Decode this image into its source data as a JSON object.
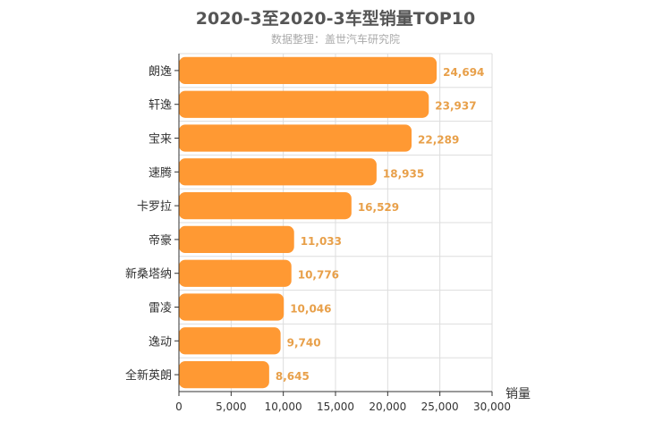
{
  "chart_data": {
    "type": "bar",
    "orientation": "horizontal",
    "title": "2020-3至2020-3车型销量TOP10",
    "subtitle": "数据整理：盖世汽车研究院",
    "categories": [
      "朗逸",
      "轩逸",
      "宝来",
      "速腾",
      "卡罗拉",
      "帝豪",
      "新桑塔纳",
      "雷凌",
      "逸动",
      "全新英朗"
    ],
    "values": [
      24694,
      23937,
      22289,
      18935,
      16529,
      11033,
      10776,
      10046,
      9740,
      8645
    ],
    "value_labels": [
      "24,694",
      "23,937",
      "22,289",
      "18,935",
      "16,529",
      "11,033",
      "10,776",
      "10,046",
      "9,740",
      "8,645"
    ],
    "xlabel": "销量",
    "ylabel": "",
    "xlim": [
      0,
      30000
    ],
    "xticks": [
      0,
      5000,
      10000,
      15000,
      20000,
      25000,
      30000
    ],
    "xtick_labels": [
      "0",
      "5,000",
      "10,000",
      "15,000",
      "20,000",
      "25,000",
      "30,000"
    ],
    "grid": true,
    "bar_color": "#ff9933",
    "label_color": "#e8a04a"
  }
}
